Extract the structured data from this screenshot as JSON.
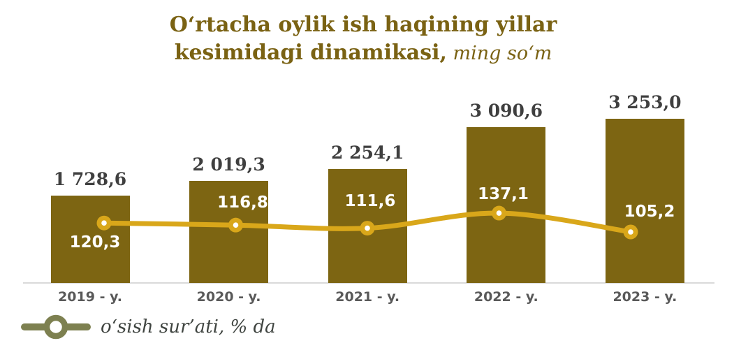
{
  "title": {
    "line1": "O‘rtacha oylik ish haqining yillar",
    "line2_bold": "kesimidagi dinamikasi,",
    "line2_italic": " ming so‘m"
  },
  "legend": {
    "label": "o‘sish sur’ati, % da"
  },
  "colors": {
    "bar_fill": "#7d6512",
    "line_stroke": "#d9a71a",
    "marker_fill": "#d9a71a",
    "marker_center": "#ffffff",
    "title_text": "#7a6213",
    "bar_label_text": "#3f3f3f",
    "axis_label_text": "#595959",
    "growth_label_text": "#ffffff",
    "legend_marker": "#7d8050",
    "axis_line": "#d9d9d9"
  },
  "chart_data": {
    "type": "bar",
    "title": "O‘rtacha oylik ish haqining yillar kesimidagi dinamikasi, ming so‘m",
    "categories": [
      "2019 - y.",
      "2020 - y.",
      "2021 - y.",
      "2022 - y.",
      "2023 - y."
    ],
    "series": [
      {
        "type": "bar",
        "values": [
          1728.6,
          2019.3,
          2254.1,
          3090.6,
          3253.0
        ],
        "labels": [
          "1 728,6",
          "2 019,3",
          "2 254,1",
          "3 090,6",
          "3 253,0"
        ]
      },
      {
        "type": "line",
        "name": "o‘sish sur’ati, % da",
        "values": [
          120.3,
          116.8,
          111.6,
          137.1,
          105.2
        ],
        "labels": [
          "120,3",
          "116,8",
          "111,6",
          "137,1",
          "105,2"
        ]
      }
    ],
    "ylim_bars": [
      0,
      3500
    ],
    "grid": false,
    "axis_ticks_visible": false,
    "legend_position": "bottom-left"
  }
}
